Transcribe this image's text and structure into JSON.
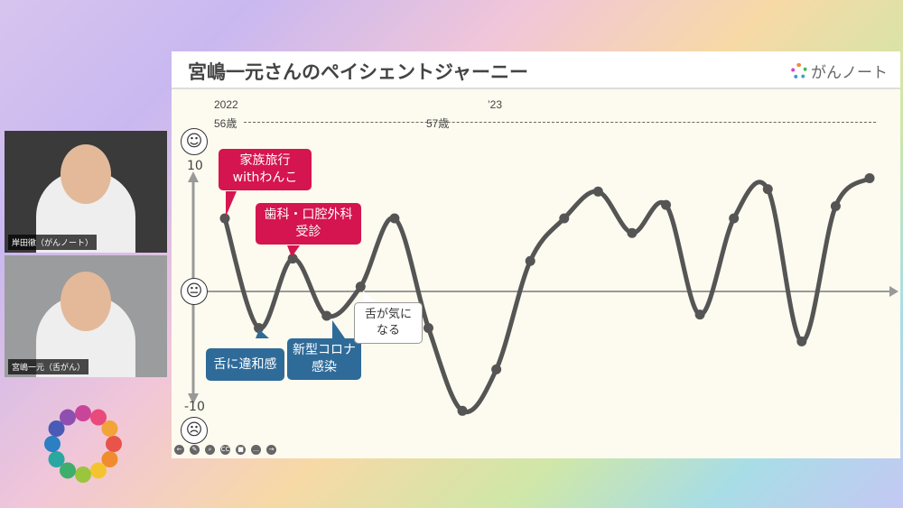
{
  "slide": {
    "title": "宮嶋一元さんのペイシェントジャーニー",
    "brand": "がんノート",
    "timeline": {
      "year_start": "2022",
      "year_next": "’23",
      "age_start": "56歳",
      "age_next": "57歳"
    }
  },
  "participants": [
    {
      "name": "岸田徹（がんノート）"
    },
    {
      "name": "宮嶋一元（舌がん）"
    }
  ],
  "callouts": {
    "trip": "家族旅行\nwithわんこ",
    "dental": "歯科・口腔外科\n受診",
    "tongue": "舌に違和感",
    "covid": "新型コロナ\n感染",
    "worry": "舌が気に\nなる"
  },
  "controls": [
    "prev-icon",
    "pen-icon",
    "zoom-icon",
    "cc-icon",
    "camera-icon",
    "more-icon",
    "next-icon"
  ],
  "chart_data": {
    "type": "line",
    "ylim": [
      -10,
      10
    ],
    "yticks": [
      "10",
      "-10"
    ],
    "top_icon": "smiling-face-icon",
    "mid_icon": "neutral-face-icon",
    "bottom_icon": "crying-face-icon",
    "values": [
      6,
      -3,
      2.7,
      -2,
      0.4,
      6,
      -3,
      -9.8,
      -6.4,
      2.5,
      6,
      8.2,
      4.8,
      7.1,
      -1.9,
      6,
      8.4,
      -4.1,
      7,
      9.3
    ],
    "line_color": "#555555"
  },
  "colors": {
    "event_positive": "#d5154f",
    "event_negative": "#2f6b99"
  }
}
